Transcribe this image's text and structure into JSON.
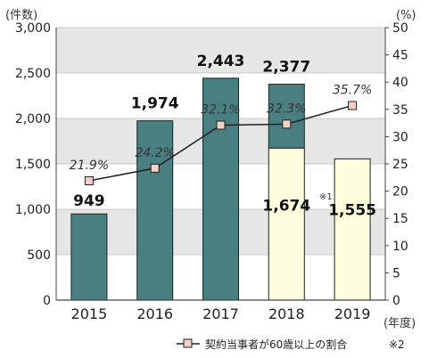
{
  "chart_data": {
    "type": "bar",
    "categories": [
      "2015",
      "2016",
      "2017",
      "2018",
      "2019"
    ],
    "series": [
      {
        "values": [
          949,
          1974,
          2443,
          703,
          0
        ],
        "color": "#4a7f82",
        "axis": "left"
      },
      {
        "values": [
          0,
          0,
          0,
          1674,
          1555
        ],
        "color": "#ffffdd",
        "axis": "left"
      },
      {
        "name": "契約当事者が60歳以上の割合",
        "type": "line",
        "values": [
          21.9,
          24.2,
          32.1,
          32.3,
          35.7
        ],
        "color": "#222222",
        "marker_color": "#f4cfc8",
        "axis": "right"
      }
    ],
    "bar_labels": [
      "949",
      "1,974",
      "2,443",
      "2,377",
      "1,674",
      "1,555"
    ],
    "pct_labels": [
      "21.9%",
      "24.2%",
      "32.1%",
      "32.3%",
      "35.7%"
    ],
    "left_axis": {
      "unit": "(件数)",
      "ylim": [
        0,
        3000
      ],
      "ticks": [
        "0",
        "500",
        "1,000",
        "1,500",
        "2,000",
        "2,500",
        "3,000"
      ]
    },
    "right_axis": {
      "unit": "(%)",
      "ylim": [
        0,
        50
      ],
      "ticks": [
        "0",
        "5",
        "10",
        "15",
        "20",
        "25",
        "30",
        "35",
        "40",
        "45",
        "50"
      ]
    },
    "xlabel": "(年度)",
    "note_2018": "※1",
    "legend": {
      "label": "契約当事者が60歳以上の割合",
      "note": "※2"
    },
    "background_bands": [
      "#e6e6e6",
      "#ffffff"
    ]
  }
}
